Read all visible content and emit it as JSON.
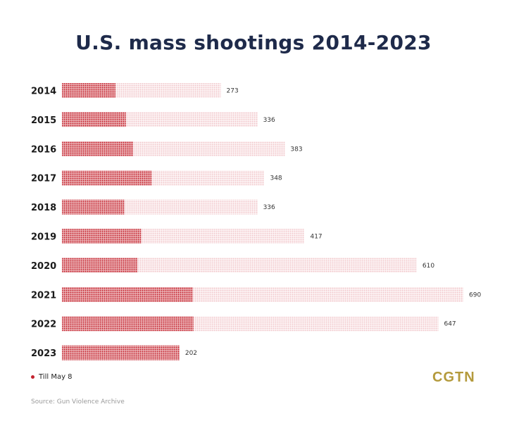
{
  "title": "U.S. mass shootings 2014-2023",
  "legend": {
    "label": "Till May 8"
  },
  "source": "Source: Gun Violence Archive",
  "logo": "CGTN",
  "colors": {
    "dark": "#c4232f",
    "light": "#f2c7cb",
    "logo": "#b49a3c",
    "title": "#1e2a4a"
  },
  "chart_data": {
    "type": "bar",
    "orientation": "horizontal",
    "title": "U.S. mass shootings 2014-2023",
    "categories": [
      "2014",
      "2015",
      "2016",
      "2017",
      "2018",
      "2019",
      "2020",
      "2021",
      "2022",
      "2023"
    ],
    "series": [
      {
        "name": "Till May 8",
        "values": [
          92,
          110,
          122,
          154,
          107,
          136,
          130,
          225,
          226,
          202
        ]
      },
      {
        "name": "",
        "values": [
          273,
          336,
          383,
          348,
          336,
          417,
          610,
          690,
          647,
          202
        ]
      }
    ],
    "value_labels": [
      "273",
      "336",
      "383",
      "348",
      "336",
      "417",
      "610",
      "690",
      "647",
      "202"
    ],
    "xlim": [
      0,
      690
    ],
    "grid": false
  }
}
